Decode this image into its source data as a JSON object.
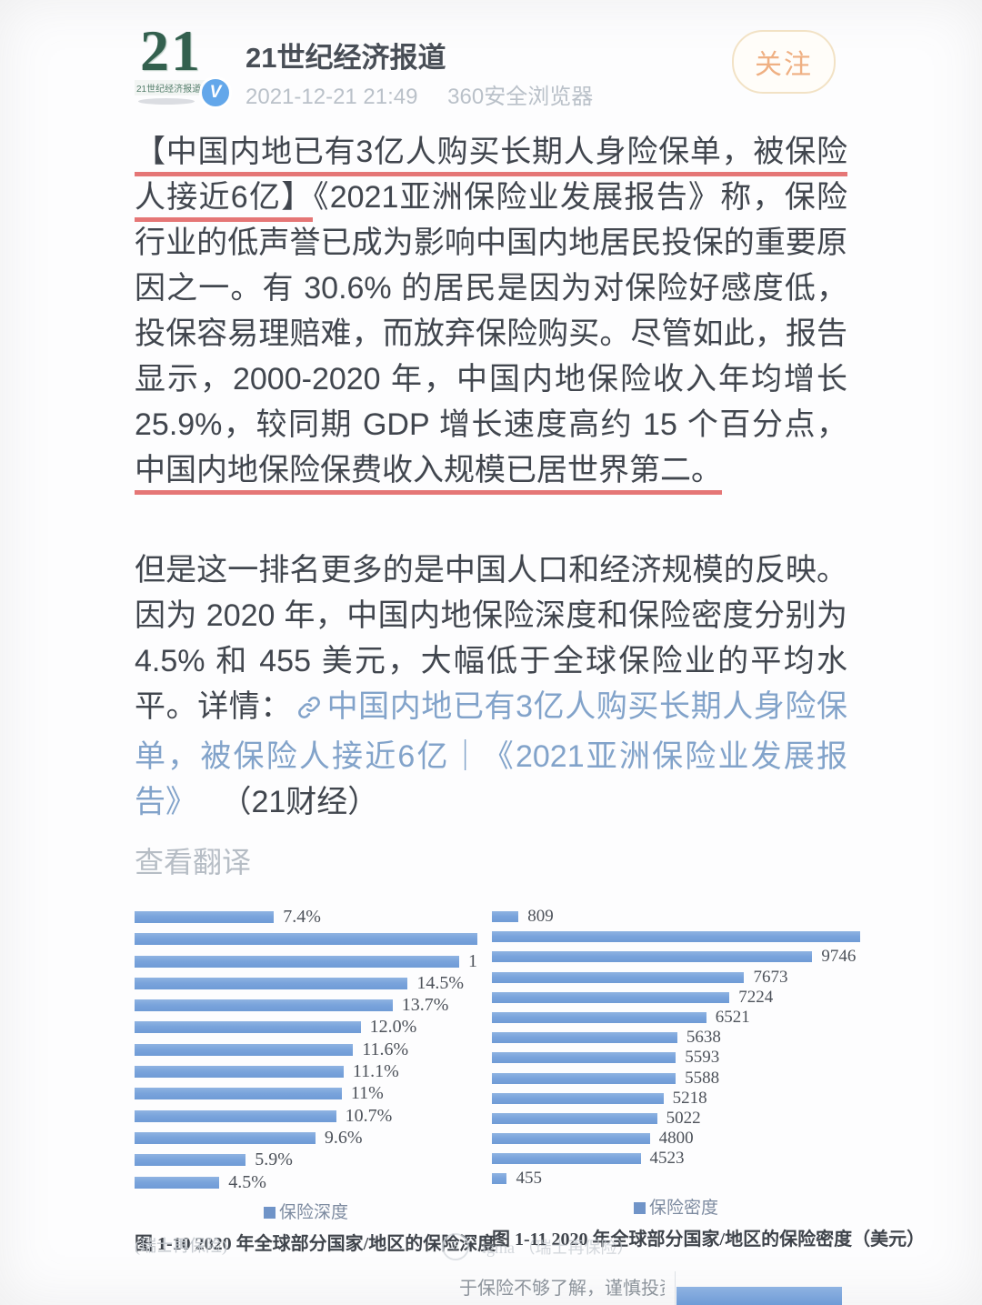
{
  "header": {
    "logo_text": "21",
    "logo_subtext": "21世纪经济报道",
    "badge": "V",
    "account_name": "21世纪经济报道",
    "timestamp": "2021-12-21 21:49",
    "source_app": "360安全浏览器",
    "follow_label": "关注"
  },
  "post": {
    "paragraph1": [
      {
        "t": "【中国内地已有3亿人购买长期人身险保单，被保险人接近6亿】",
        "redline": true
      },
      {
        "t": "《2021亚洲保险业发展报告》称，保险行业的低声誉已成为影响中国内地居民投保的重要原因之一。有 30.6% 的居民是因为对保险好感度低，投保容易理赔难，而放弃保险购买。尽管如此，报告显示，2000-2020 年，中国内地保险收入年均增长 25.9%，较同期 GDP 增长速度高约 15 个百分点，"
      },
      {
        "t": "中国内地保险保费收入规模已居世界第二。",
        "redline": true
      }
    ],
    "paragraph2": [
      {
        "t": "但是这一排名更多的是中国人口和经济规模的反映。因为 2020 年，中国内地保险深度和保险密度分别为 4.5% 和 455 美元，大幅低于全球保险业的平均水平。详情："
      },
      {
        "icon": "link-icon"
      },
      {
        "t": "中国内地已有3亿人购买长期人身险保单，被保险人接近6亿｜《2021亚洲保险业发展报告》",
        "link": true
      },
      {
        "t": "　 （21财经）"
      }
    ],
    "view_translation": "查看翻译"
  },
  "chart_data": [
    {
      "type": "bar",
      "orientation": "horizontal",
      "title": "图 1-10 2020 年全球部分国家/地区的保险深度",
      "legend": "保险深度",
      "unit": "%",
      "axis_max": 18.2,
      "note": "top-2 bar and its label are clipped by the image crop; 3rd bar label shows only a truncated 1",
      "bars": [
        {
          "label": "7.4%",
          "value": 7.4
        },
        {
          "label": "",
          "value": 18.2,
          "clipped": true
        },
        {
          "label": "1",
          "value": 17.4
        },
        {
          "label": "14.5%",
          "value": 14.5
        },
        {
          "label": "13.7%",
          "value": 13.7
        },
        {
          "label": "12.0%",
          "value": 12.0
        },
        {
          "label": "11.6%",
          "value": 11.6
        },
        {
          "label": "11.1%",
          "value": 11.1
        },
        {
          "label": "11%",
          "value": 11.0
        },
        {
          "label": "10.7%",
          "value": 10.7
        },
        {
          "label": "9.6%",
          "value": 9.6
        },
        {
          "label": "5.9%",
          "value": 5.9
        },
        {
          "label": "4.5%",
          "value": 4.5
        }
      ]
    },
    {
      "type": "bar",
      "orientation": "horizontal",
      "title": "图 1-11 2020 年全球部分国家/地区的保险密度（美元）",
      "legend": "保险密度",
      "unit": "美元",
      "axis_max": 11200,
      "note": "2nd bar extends past the image crop, its label is not visible",
      "bars": [
        {
          "label": "809",
          "value": 809
        },
        {
          "label": "",
          "value": 11200,
          "clipped": true
        },
        {
          "label": "9746",
          "value": 9746
        },
        {
          "label": "7673",
          "value": 7673
        },
        {
          "label": "7224",
          "value": 7224
        },
        {
          "label": "6521",
          "value": 6521
        },
        {
          "label": "5638",
          "value": 5638
        },
        {
          "label": "5593",
          "value": 5593
        },
        {
          "label": "5588",
          "value": 5588
        },
        {
          "label": "5218",
          "value": 5218
        },
        {
          "label": "5022",
          "value": 5022
        },
        {
          "label": "4800",
          "value": 4800
        },
        {
          "label": "4523",
          "value": 4523
        },
        {
          "label": "455",
          "value": 455
        }
      ]
    }
  ],
  "footer": {
    "left_source": "(瑞士再保险)",
    "watermark_logo": "S",
    "watermark_text": "igma （瑞士再保险）",
    "partial_row_label": "于保险不够了解，谨慎投资"
  },
  "colors": {
    "bar_blue": "#7aa4dc",
    "underline_red": "#de5454",
    "link_blue": "#82a3ca",
    "follow_orange": "#efb083",
    "logo_green": "#33604e",
    "badge_blue": "#63a7ea"
  }
}
